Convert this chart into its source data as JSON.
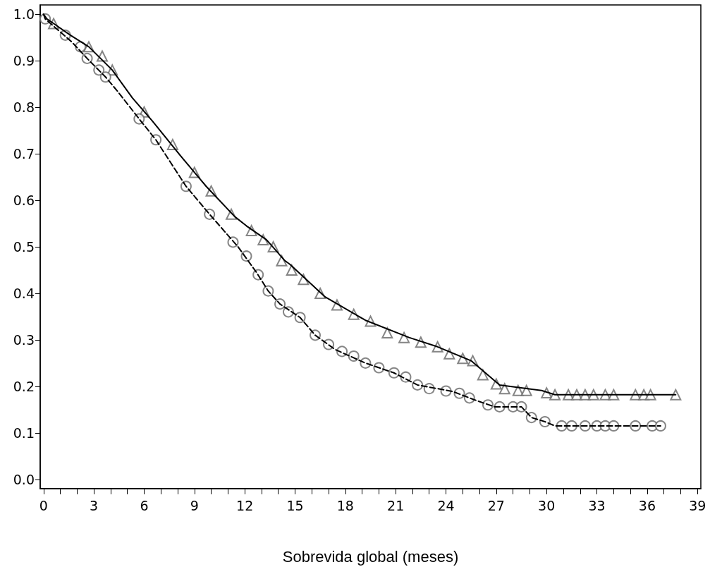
{
  "chart_data": {
    "type": "line",
    "xlabel": "Sobrevida global (meses)",
    "xlim": [
      -0.2,
      39.2
    ],
    "ylim": [
      -0.02,
      1.02
    ],
    "xticks": [
      0,
      {
        "value": 1,
        "label": null
      },
      {
        "value": 2,
        "label": null
      },
      3,
      {
        "value": 4,
        "label": null
      },
      {
        "value": 5,
        "label": null
      },
      6,
      {
        "value": 7,
        "label": null
      },
      {
        "value": 8,
        "label": null
      },
      9,
      {
        "value": 10,
        "label": null
      },
      {
        "value": 11,
        "label": null
      },
      12,
      {
        "value": 13,
        "label": null
      },
      {
        "value": 14,
        "label": null
      },
      15,
      {
        "value": 16,
        "label": null
      },
      {
        "value": 17,
        "label": null
      },
      18,
      {
        "value": 19,
        "label": null
      },
      {
        "value": 20,
        "label": null
      },
      21,
      {
        "value": 22,
        "label": null
      },
      {
        "value": 23,
        "label": null
      },
      24,
      {
        "value": 25,
        "label": null
      },
      {
        "value": 26,
        "label": null
      },
      27,
      {
        "value": 28,
        "label": null
      },
      {
        "value": 29,
        "label": null
      },
      30,
      {
        "value": 31,
        "label": null
      },
      {
        "value": 32,
        "label": null
      },
      33,
      {
        "value": 34,
        "label": null
      },
      {
        "value": 35,
        "label": null
      },
      36,
      {
        "value": 37,
        "label": null
      },
      {
        "value": 38,
        "label": null
      },
      39
    ],
    "yticks": [
      {
        "value": 0,
        "label": "0.0"
      },
      0.1,
      0.2,
      0.3,
      0.4,
      0.5,
      0.6,
      0.7,
      0.8,
      0.9,
      {
        "value": 1,
        "label": "1.0"
      }
    ],
    "series": [
      {
        "color": "#000000",
        "line_style": "solid",
        "marker": "none",
        "x": [
          0,
          0.2,
          1.6,
          2.7,
          4.1,
          5.3,
          6.5,
          8.3,
          9.7,
          11.4,
          12.1,
          13.3,
          14.4,
          14.7,
          16.8,
          19.2,
          21.8,
          23.5,
          25.5,
          27.2,
          29.7,
          30.5,
          37.7
        ],
        "values": [
          1.0,
          0.99,
          0.955,
          0.93,
          0.88,
          0.82,
          0.77,
          0.69,
          0.63,
          0.565,
          0.545,
          0.515,
          0.47,
          0.462,
          0.392,
          0.342,
          0.305,
          0.285,
          0.255,
          0.203,
          0.191,
          0.182,
          0.182
        ]
      },
      {
        "type": "scatter",
        "color": "#666666",
        "marker": "triangle",
        "x": [
          0.6,
          2.7,
          3.5,
          4.1,
          6.0,
          7.7,
          9.0,
          10.0,
          11.2,
          12.4,
          13.1,
          13.7,
          14.2,
          14.8,
          15.5,
          16.5,
          17.5,
          18.5,
          19.5,
          20.5,
          21.5,
          22.5,
          23.5,
          24.2,
          25.0,
          25.6,
          26.2,
          27.0,
          27.5,
          28.3,
          28.8,
          30.0,
          30.5,
          31.3,
          31.8,
          32.3,
          32.8,
          33.5,
          34.0,
          35.3,
          35.8,
          36.2,
          37.7
        ],
        "values": [
          0.98,
          0.93,
          0.91,
          0.88,
          0.79,
          0.72,
          0.66,
          0.62,
          0.57,
          0.535,
          0.515,
          0.5,
          0.47,
          0.45,
          0.43,
          0.4,
          0.375,
          0.355,
          0.34,
          0.315,
          0.305,
          0.295,
          0.285,
          0.27,
          0.26,
          0.255,
          0.225,
          0.205,
          0.195,
          0.191,
          0.191,
          0.186,
          0.182,
          0.182,
          0.182,
          0.182,
          0.182,
          0.182,
          0.182,
          0.182,
          0.182,
          0.182,
          0.182
        ]
      },
      {
        "color": "#000000",
        "line_style": "dashed",
        "marker": "none",
        "x": [
          0,
          0.1,
          1.7,
          2.6,
          3.7,
          4.4,
          5.7,
          6.7,
          7.6,
          8.5,
          9.9,
          11.6,
          12.7,
          13.4,
          14.1,
          15.3,
          16.2,
          17.4,
          19.2,
          20.9,
          22.3,
          24.4,
          25.7,
          26.9,
          28.5,
          29.1,
          29.9,
          30.5,
          36.8
        ],
        "values": [
          1.0,
          0.99,
          0.94,
          0.905,
          0.865,
          0.835,
          0.775,
          0.73,
          0.68,
          0.63,
          0.57,
          0.5,
          0.445,
          0.405,
          0.377,
          0.348,
          0.31,
          0.279,
          0.25,
          0.229,
          0.203,
          0.189,
          0.171,
          0.156,
          0.156,
          0.133,
          0.124,
          0.115,
          0.115
        ]
      },
      {
        "type": "scatter",
        "color": "#666666",
        "marker": "circle",
        "x": [
          0.1,
          1.3,
          2.2,
          2.6,
          3.3,
          3.7,
          5.7,
          6.7,
          8.5,
          9.9,
          11.3,
          12.1,
          12.8,
          13.4,
          14.1,
          14.6,
          15.3,
          16.2,
          17.0,
          17.8,
          18.5,
          19.2,
          20.0,
          20.9,
          21.6,
          22.3,
          23.0,
          24.0,
          24.8,
          25.4,
          26.5,
          27.2,
          28.0,
          28.5,
          29.1,
          29.9,
          30.9,
          31.5,
          32.3,
          33.0,
          33.5,
          34.0,
          35.3,
          36.3,
          36.8
        ],
        "values": [
          0.99,
          0.955,
          0.93,
          0.905,
          0.88,
          0.865,
          0.775,
          0.73,
          0.63,
          0.57,
          0.51,
          0.48,
          0.44,
          0.405,
          0.377,
          0.36,
          0.348,
          0.31,
          0.29,
          0.275,
          0.265,
          0.25,
          0.24,
          0.229,
          0.22,
          0.203,
          0.195,
          0.19,
          0.185,
          0.175,
          0.16,
          0.156,
          0.156,
          0.156,
          0.133,
          0.124,
          0.115,
          0.115,
          0.115,
          0.115,
          0.115,
          0.115,
          0.115,
          0.115,
          0.115
        ]
      }
    ]
  }
}
